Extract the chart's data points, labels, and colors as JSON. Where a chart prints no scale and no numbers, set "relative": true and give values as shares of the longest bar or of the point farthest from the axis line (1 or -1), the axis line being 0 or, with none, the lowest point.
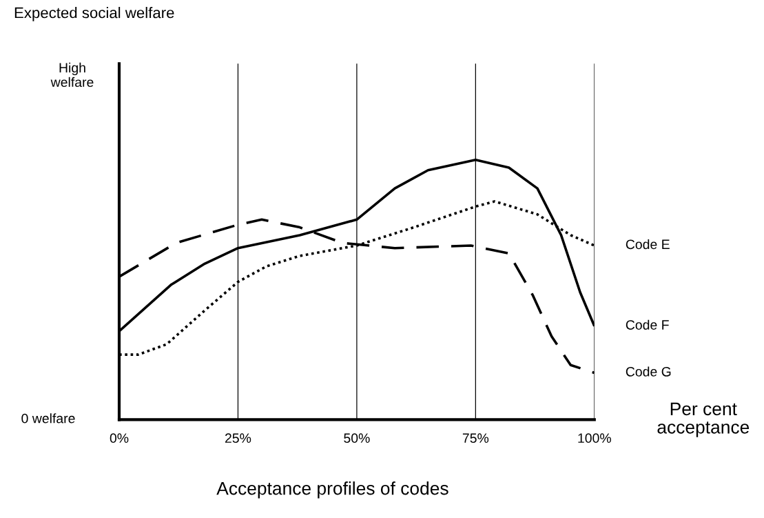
{
  "chart_data": {
    "type": "line",
    "relative": true,
    "xlabel": "Per cent\nacceptance",
    "annotations": [
      "Expected social welfare",
      "High\nwelfare",
      "0 welfare",
      "Acceptance profiles of codes"
    ],
    "xlim": [
      0,
      100
    ],
    "xticks": [
      {
        "value": 0,
        "label": "0%"
      },
      {
        "value": 25,
        "label": "25%"
      },
      {
        "value": 50,
        "label": "50%"
      },
      {
        "value": 75,
        "label": "75%"
      },
      {
        "value": 100,
        "label": "100%"
      }
    ],
    "grid": "x",
    "legend": false,
    "series": [
      {
        "name": "Code E",
        "color": "#000000",
        "line_style": "dotted",
        "x": [
          0,
          4,
          10,
          18,
          25,
          31,
          38,
          50,
          62,
          75,
          79,
          88,
          95,
          100
        ],
        "values": [
          0.25,
          0.25,
          0.29,
          0.42,
          0.53,
          0.59,
          0.63,
          0.67,
          0.74,
          0.82,
          0.84,
          0.79,
          0.71,
          0.67
        ]
      },
      {
        "name": "Code F",
        "color": "#000000",
        "line_style": "solid",
        "x": [
          0,
          11,
          18,
          25,
          38,
          50,
          58,
          65,
          75,
          82,
          88,
          93,
          97,
          100
        ],
        "values": [
          0.34,
          0.52,
          0.6,
          0.66,
          0.71,
          0.77,
          0.89,
          0.96,
          1,
          0.97,
          0.89,
          0.71,
          0.49,
          0.36
        ]
      },
      {
        "name": "Code G",
        "color": "#000000",
        "line_style": "dashed",
        "x": [
          0,
          12,
          25,
          30,
          38,
          47,
          58,
          74,
          82,
          87,
          91,
          95,
          100
        ],
        "values": [
          0.55,
          0.68,
          0.75,
          0.77,
          0.74,
          0.68,
          0.66,
          0.67,
          0.64,
          0.48,
          0.32,
          0.21,
          0.18
        ]
      }
    ]
  }
}
